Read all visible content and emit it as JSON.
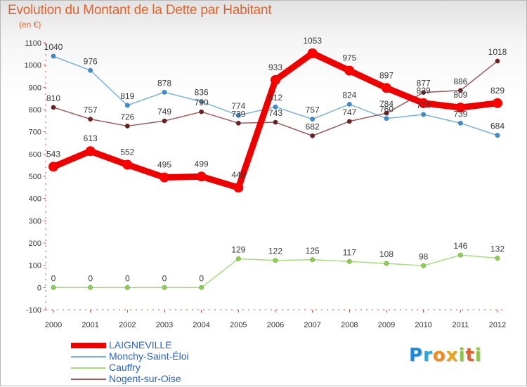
{
  "header": {
    "title": "Evolution du Montant de la Dette par Habitant",
    "subtitle": "(en €)"
  },
  "chart_data": {
    "type": "line",
    "title": "Evolution du Montant de la Dette par Habitant",
    "subtitle": "(en €)",
    "xlabel": "",
    "ylabel": "",
    "x": [
      2000,
      2001,
      2002,
      2003,
      2004,
      2005,
      2006,
      2007,
      2008,
      2009,
      2010,
      2011,
      2012
    ],
    "y_ticks": [
      -100,
      0,
      100,
      200,
      300,
      400,
      500,
      600,
      700,
      800,
      900,
      1000,
      1100
    ],
    "ylim": [
      -100,
      1100
    ],
    "grid": "none",
    "legend_position": "bottom-left",
    "series": [
      {
        "name": "LAIGNEVILLE",
        "color": "#ff0000",
        "line_color": "#ee0000",
        "emphasis": "thick",
        "values": [
          543,
          613,
          552,
          495,
          499,
          449,
          933,
          1053,
          975,
          897,
          829,
          809,
          829
        ]
      },
      {
        "name": "Monchy-Saint-Éloi",
        "color": "#3b8fd1",
        "line_color": "#7ab0dc",
        "values": [
          1040,
          976,
          819,
          878,
          836,
          774,
          812,
          757,
          824,
          760,
          778,
          739,
          684
        ]
      },
      {
        "name": "Cauffry",
        "color": "#8ad24a",
        "line_color": "#a6dc7e",
        "values": [
          0,
          0,
          0,
          0,
          0,
          129,
          122,
          125,
          117,
          108,
          98,
          146,
          132
        ]
      },
      {
        "name": "Nogent-sur-Oise",
        "color": "#6e1f1f",
        "line_color": "#9a5a5a",
        "values": [
          810,
          757,
          726,
          749,
          790,
          739,
          743,
          682,
          747,
          784,
          877,
          886,
          1018
        ]
      }
    ]
  },
  "logo": {
    "letters": [
      "P",
      "r",
      "o",
      "x",
      "i",
      "t",
      "i"
    ]
  }
}
